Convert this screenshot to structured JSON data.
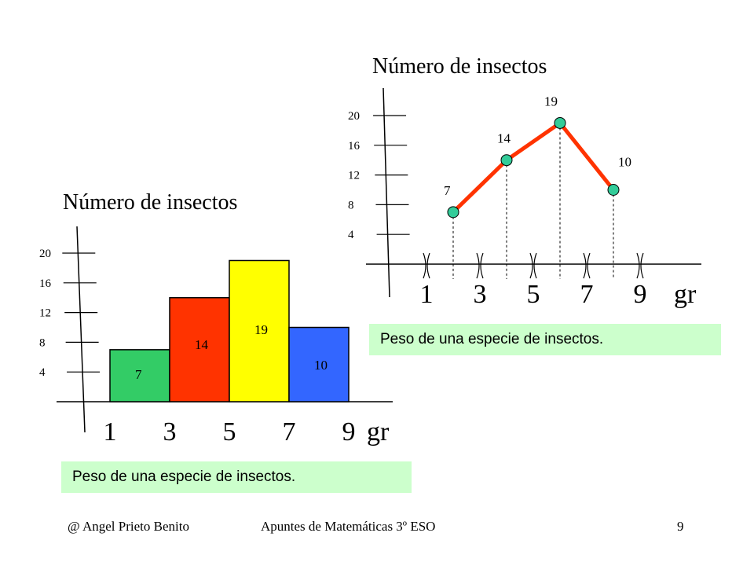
{
  "footer": {
    "author": "@ Angel Prieto Benito",
    "course": "Apuntes de Matemáticas 3º ESO",
    "page": "9"
  },
  "chart_data": [
    {
      "type": "bar",
      "title": "Número de insectos",
      "xlabel": "Peso de una especie de insectos.",
      "x_unit": "gr",
      "x_ticks": [
        "1",
        "3",
        "5",
        "7",
        "9"
      ],
      "y_ticks": [
        4,
        8,
        12,
        16,
        20
      ],
      "bins": [
        [
          1,
          3
        ],
        [
          3,
          5
        ],
        [
          5,
          7
        ],
        [
          7,
          9
        ]
      ],
      "values": [
        7,
        14,
        19,
        10
      ],
      "data_labels": [
        "7",
        "14",
        "19",
        "10"
      ],
      "colors": [
        "#33cc66",
        "#ff3300",
        "#ffff00",
        "#3366ff"
      ],
      "ylim": [
        0,
        20
      ]
    },
    {
      "type": "line",
      "title": "Número de insectos",
      "xlabel": "Peso de una especie de insectos.",
      "x_unit": "gr",
      "x_ticks": [
        "1",
        "3",
        "5",
        "7",
        "9"
      ],
      "y_ticks": [
        4,
        8,
        12,
        16,
        20
      ],
      "x": [
        2,
        4,
        6,
        8
      ],
      "values": [
        7,
        14,
        19,
        10
      ],
      "data_labels": [
        "7",
        "14",
        "19",
        "10"
      ],
      "line_color": "#ff3300",
      "marker_color": "#33cc99",
      "ylim": [
        0,
        20
      ]
    }
  ]
}
